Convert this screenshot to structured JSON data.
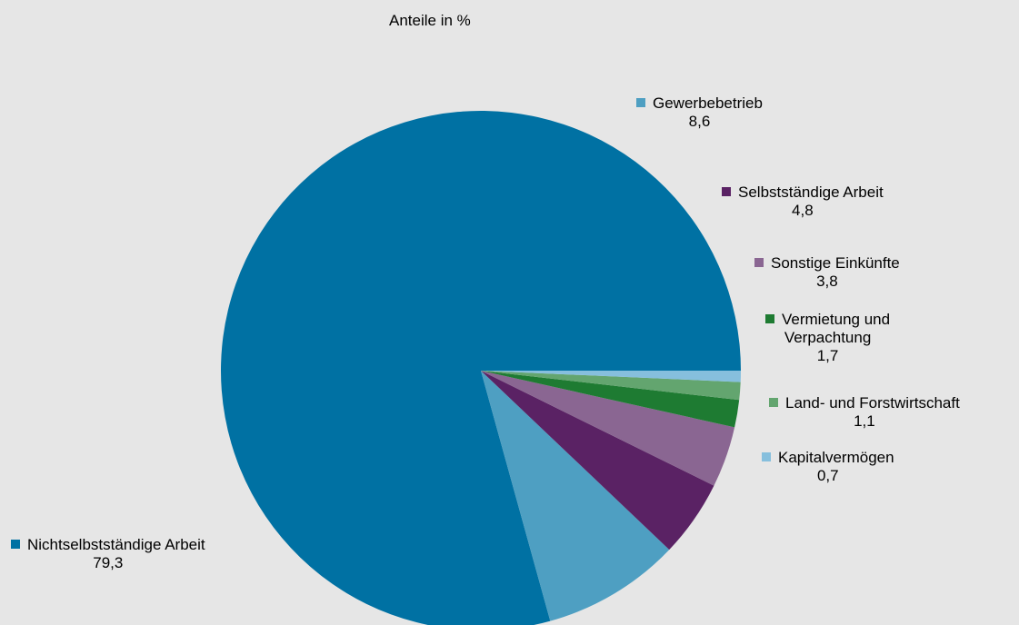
{
  "chart_data": {
    "type": "pie",
    "subtitle": "Anteile in %",
    "slices": [
      {
        "label": "Nichtselbstständige Arbeit",
        "value_text": "79,3",
        "value": 79.3,
        "color": "#0071a3"
      },
      {
        "label": "Gewerbebetrieb",
        "value_text": "8,6",
        "value": 8.6,
        "color": "#4e9fc2"
      },
      {
        "label": "Selbstständige Arbeit",
        "value_text": "4,8",
        "value": 4.8,
        "color": "#5a2264"
      },
      {
        "label": "Sonstige Einkünfte",
        "value_text": "3,8",
        "value": 3.8,
        "color": "#8a6692"
      },
      {
        "label": "Vermietung und Verpachtung",
        "label_lines": [
          "Vermietung und",
          "Verpachtung"
        ],
        "value_text": "1,7",
        "value": 1.7,
        "color": "#1e7b32"
      },
      {
        "label": "Land- und Forstwirtschaft",
        "value_text": "1,1",
        "value": 1.1,
        "color": "#63a56f"
      },
      {
        "label": "Kapitalvermögen",
        "value_text": "0,7",
        "value": 0.7,
        "color": "#86bfdd"
      }
    ]
  }
}
